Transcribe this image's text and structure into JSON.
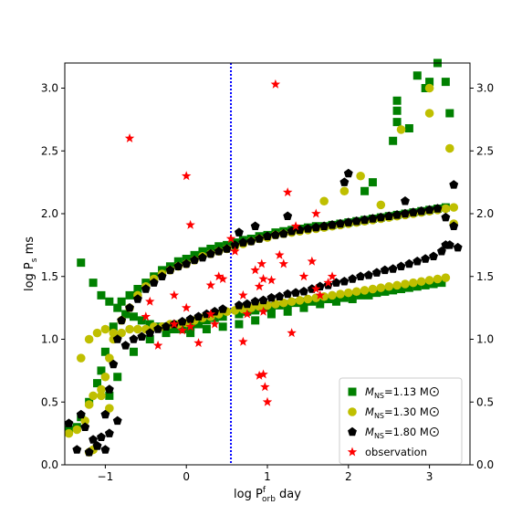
{
  "chart_data": {
    "type": "scatter",
    "xlabel": {
      "main": "log P",
      "sup": "f",
      "sub": "orb",
      "unit": "day"
    },
    "ylabel": {
      "main": "log P",
      "sub": "s",
      "unit": "ms"
    },
    "xlim": [
      -1.5,
      3.5
    ],
    "ylim": [
      0.0,
      3.2
    ],
    "x_ticks": [
      -1,
      0,
      1,
      2,
      3
    ],
    "x_tick_labels": [
      "−1",
      "0",
      "1",
      "2",
      "3"
    ],
    "y_ticks": [
      0.0,
      0.5,
      1.0,
      1.5,
      2.0,
      2.5,
      3.0
    ],
    "y_tick_labels": [
      "0.0",
      "0.5",
      "1.0",
      "1.5",
      "2.0",
      "2.5",
      "3.0"
    ],
    "mirror_ticks": "right",
    "vline": {
      "x": 0.55,
      "color": "#0000ff",
      "style": "dotted"
    },
    "legend_position": "lower-right",
    "series": [
      {
        "name": "M_NS=1.13 M⊙",
        "legend": {
          "pre": "M",
          "sub": "NS",
          "post": "=1.13 M"
        },
        "marker": "square",
        "color": "#008000",
        "x": [
          -1.45,
          -1.35,
          -1.3,
          -1.2,
          -1.1,
          -1.0,
          -0.9,
          -0.8,
          -0.7,
          -0.6,
          -0.5,
          -0.4,
          -0.3,
          -0.2,
          -0.1,
          0.0,
          0.1,
          0.2,
          0.3,
          0.4,
          0.5,
          0.6,
          0.7,
          0.8,
          0.9,
          1.0,
          1.1,
          1.2,
          1.3,
          1.4,
          1.5,
          1.6,
          1.7,
          1.8,
          1.9,
          2.0,
          2.1,
          2.2,
          2.3,
          2.4,
          2.5,
          2.6,
          2.7,
          2.8,
          2.9,
          3.0,
          3.1,
          3.2,
          -1.3,
          -1.15,
          -1.05,
          -0.95,
          -0.85,
          -0.75,
          -0.65,
          -0.55,
          -0.45,
          -0.35,
          -0.25,
          -0.15,
          -0.05,
          0.05,
          0.15,
          0.25,
          0.35,
          0.45,
          0.65,
          0.75,
          0.85,
          0.95,
          1.05,
          1.15,
          1.25,
          1.35,
          1.45,
          1.55,
          1.65,
          1.75,
          1.85,
          1.95,
          2.05,
          2.15,
          2.25,
          2.35,
          2.45,
          2.55,
          2.65,
          2.75,
          2.85,
          2.95,
          3.05,
          3.15,
          2.6,
          2.6,
          2.6,
          2.55,
          2.75,
          2.85,
          2.95,
          3.0,
          3.1,
          3.2,
          3.25,
          2.3,
          2.2,
          -1.05,
          -0.95,
          -0.85,
          -0.65,
          -0.45,
          -0.25,
          0.05,
          0.25,
          0.45,
          0.65,
          0.85,
          1.05,
          1.25,
          1.45,
          1.65,
          1.85,
          2.05,
          2.25,
          2.45
        ],
        "y": [
          0.28,
          0.3,
          0.38,
          0.5,
          0.65,
          0.9,
          1.1,
          1.3,
          1.35,
          1.4,
          1.45,
          1.5,
          1.55,
          1.58,
          1.62,
          1.64,
          1.67,
          1.7,
          1.72,
          1.74,
          1.75,
          1.77,
          1.79,
          1.8,
          1.82,
          1.83,
          1.85,
          1.86,
          1.87,
          1.88,
          1.89,
          1.9,
          1.9,
          1.91,
          1.92,
          1.93,
          1.94,
          1.95,
          1.96,
          1.97,
          1.98,
          1.99,
          2.0,
          2.01,
          2.02,
          2.03,
          2.04,
          2.05,
          1.61,
          1.45,
          1.35,
          1.3,
          1.25,
          1.2,
          1.18,
          1.15,
          1.12,
          1.1,
          1.1,
          1.08,
          1.08,
          1.1,
          1.12,
          1.15,
          1.17,
          1.18,
          1.2,
          1.22,
          1.23,
          1.25,
          1.26,
          1.27,
          1.28,
          1.29,
          1.3,
          1.3,
          1.31,
          1.32,
          1.33,
          1.33,
          1.34,
          1.35,
          1.36,
          1.37,
          1.38,
          1.39,
          1.4,
          1.41,
          1.42,
          1.43,
          1.44,
          1.45,
          2.9,
          2.82,
          2.73,
          2.58,
          2.68,
          3.1,
          3.0,
          3.05,
          3.2,
          3.05,
          2.8,
          2.25,
          2.18,
          0.75,
          0.55,
          0.7,
          0.9,
          1.0,
          1.05,
          1.05,
          1.08,
          1.1,
          1.12,
          1.15,
          1.2,
          1.22,
          1.25,
          1.28,
          1.3,
          1.32,
          1.35,
          1.38
        ]
      },
      {
        "name": "M_NS=1.30 M⊙",
        "legend": {
          "pre": "M",
          "sub": "NS",
          "post": "=1.30 M"
        },
        "marker": "circle",
        "color": "#bfbf00",
        "x": [
          -1.45,
          -1.35,
          -1.25,
          -1.2,
          -1.15,
          -1.05,
          -1.0,
          -0.95,
          -0.9,
          -0.8,
          -0.7,
          -0.6,
          -0.5,
          -0.4,
          -0.3,
          -0.2,
          -0.1,
          0.0,
          0.1,
          0.2,
          0.3,
          0.4,
          0.5,
          0.6,
          0.7,
          0.8,
          0.9,
          1.0,
          1.1,
          1.2,
          1.3,
          1.4,
          1.5,
          1.6,
          1.7,
          1.8,
          1.9,
          2.0,
          2.1,
          2.2,
          2.3,
          2.4,
          2.5,
          2.6,
          2.7,
          2.8,
          2.9,
          3.0,
          3.1,
          3.2,
          -1.3,
          -1.2,
          -1.1,
          -1.0,
          -0.9,
          -0.8,
          -0.7,
          -0.6,
          -0.5,
          -0.4,
          -0.3,
          -0.2,
          -0.1,
          0.0,
          0.1,
          0.2,
          0.3,
          0.4,
          0.5,
          0.6,
          0.7,
          0.8,
          0.9,
          1.0,
          1.1,
          1.2,
          1.3,
          1.4,
          1.5,
          1.6,
          1.7,
          1.8,
          1.9,
          2.0,
          2.1,
          2.2,
          2.3,
          2.4,
          2.5,
          2.6,
          2.7,
          2.8,
          2.9,
          3.0,
          3.1,
          3.2,
          3.0,
          3.0,
          2.65,
          2.4,
          3.25,
          3.3,
          3.3,
          1.7,
          1.95,
          2.15,
          -1.2,
          -1.15,
          -1.05,
          -0.95
        ],
        "y": [
          0.25,
          0.28,
          0.35,
          0.48,
          0.55,
          0.6,
          0.7,
          0.85,
          1.0,
          1.15,
          1.25,
          1.35,
          1.42,
          1.48,
          1.52,
          1.55,
          1.58,
          1.6,
          1.63,
          1.66,
          1.68,
          1.7,
          1.72,
          1.74,
          1.76,
          1.78,
          1.8,
          1.81,
          1.83,
          1.84,
          1.85,
          1.86,
          1.87,
          1.88,
          1.89,
          1.9,
          1.91,
          1.92,
          1.93,
          1.94,
          1.95,
          1.96,
          1.97,
          1.98,
          1.99,
          2.0,
          2.01,
          2.02,
          2.03,
          2.04,
          0.85,
          1.0,
          1.05,
          1.08,
          1.05,
          1.05,
          1.08,
          1.08,
          1.08,
          1.1,
          1.1,
          1.12,
          1.12,
          1.13,
          1.15,
          1.17,
          1.18,
          1.2,
          1.22,
          1.23,
          1.24,
          1.25,
          1.26,
          1.27,
          1.28,
          1.29,
          1.3,
          1.31,
          1.32,
          1.33,
          1.34,
          1.35,
          1.36,
          1.37,
          1.38,
          1.39,
          1.4,
          1.41,
          1.42,
          1.43,
          1.44,
          1.45,
          1.46,
          1.47,
          1.48,
          1.49,
          2.8,
          3.0,
          2.67,
          2.07,
          2.52,
          2.05,
          1.92,
          2.1,
          2.18,
          2.3,
          0.1,
          0.12,
          0.55,
          0.45
        ]
      },
      {
        "name": "M_NS=1.80 M⊙",
        "legend": {
          "pre": "M",
          "sub": "NS",
          "post": "=1.80 M"
        },
        "marker": "pentagon",
        "color": "#000000",
        "x": [
          -1.45,
          -1.3,
          -1.25,
          -1.15,
          -1.1,
          -1.05,
          -1.0,
          -0.95,
          -0.9,
          -0.85,
          -0.8,
          -0.7,
          -0.6,
          -0.5,
          -0.4,
          -0.3,
          -0.2,
          -0.1,
          0.0,
          0.1,
          0.2,
          0.3,
          0.4,
          0.5,
          0.6,
          0.7,
          0.8,
          0.9,
          1.0,
          1.1,
          1.2,
          1.3,
          1.4,
          1.5,
          1.6,
          1.7,
          1.8,
          1.9,
          2.0,
          2.1,
          2.2,
          2.3,
          2.4,
          2.5,
          2.6,
          2.7,
          2.8,
          2.9,
          3.0,
          3.1,
          3.2,
          3.3,
          -0.75,
          -0.65,
          -0.55,
          -0.45,
          -0.35,
          -0.25,
          -0.15,
          -0.05,
          0.05,
          0.15,
          0.25,
          0.35,
          0.45,
          0.65,
          0.75,
          0.85,
          0.95,
          1.05,
          1.15,
          1.25,
          1.35,
          1.45,
          1.55,
          1.65,
          1.75,
          1.85,
          1.95,
          2.05,
          2.15,
          2.25,
          2.35,
          2.45,
          2.55,
          2.65,
          2.75,
          2.85,
          2.95,
          3.05,
          3.15,
          3.25,
          2.0,
          1.95,
          2.7,
          3.3,
          3.35,
          3.2,
          0.65,
          0.85,
          1.25,
          -1.35,
          -1.2,
          -1.1,
          -1.0,
          -0.95,
          -0.85
        ],
        "y": [
          0.33,
          0.4,
          0.3,
          0.2,
          0.15,
          0.22,
          0.4,
          0.6,
          0.8,
          1.0,
          1.15,
          1.25,
          1.32,
          1.4,
          1.45,
          1.5,
          1.55,
          1.58,
          1.6,
          1.63,
          1.65,
          1.68,
          1.7,
          1.72,
          1.75,
          1.77,
          1.78,
          1.8,
          1.82,
          1.83,
          1.84,
          1.86,
          1.87,
          1.88,
          1.89,
          1.9,
          1.91,
          1.92,
          1.93,
          1.94,
          1.95,
          1.96,
          1.97,
          1.98,
          1.99,
          2.0,
          2.01,
          2.02,
          2.03,
          2.04,
          1.97,
          1.9,
          0.95,
          1.0,
          1.02,
          1.05,
          1.08,
          1.1,
          1.12,
          1.14,
          1.16,
          1.18,
          1.2,
          1.22,
          1.24,
          1.27,
          1.28,
          1.3,
          1.31,
          1.33,
          1.34,
          1.36,
          1.37,
          1.38,
          1.4,
          1.42,
          1.43,
          1.45,
          1.46,
          1.48,
          1.5,
          1.51,
          1.53,
          1.55,
          1.56,
          1.58,
          1.6,
          1.62,
          1.64,
          1.66,
          1.7,
          1.75,
          2.32,
          2.25,
          2.1,
          2.23,
          1.73,
          1.75,
          1.85,
          1.9,
          1.98,
          0.12,
          0.1,
          0.15,
          0.12,
          0.25,
          0.35
        ]
      },
      {
        "name": "observation",
        "legend": {
          "pre": "observation",
          "sub": "",
          "post": ""
        },
        "marker": "star",
        "color": "#ff0000",
        "x": [
          -0.7,
          0.0,
          0.05,
          1.1,
          1.25,
          1.3,
          -0.45,
          -0.35,
          -0.15,
          -0.05,
          0.05,
          0.15,
          0.3,
          0.35,
          0.45,
          0.55,
          0.6,
          0.7,
          0.75,
          0.85,
          0.9,
          0.95,
          1.05,
          1.15,
          1.2,
          1.35,
          1.45,
          1.55,
          1.6,
          1.65,
          1.75,
          1.8,
          0.9,
          0.95,
          0.97,
          1.0,
          0.93,
          0.7,
          0.95,
          0.4,
          0.3,
          -0.15,
          0.0,
          -0.5,
          1.6
        ],
        "y": [
          2.6,
          2.3,
          1.91,
          3.03,
          2.17,
          1.05,
          1.3,
          0.95,
          1.12,
          1.07,
          1.1,
          0.97,
          1.2,
          1.12,
          1.48,
          1.8,
          1.7,
          1.35,
          1.2,
          1.55,
          1.42,
          1.22,
          1.47,
          1.67,
          1.6,
          1.9,
          1.5,
          1.62,
          1.4,
          1.35,
          1.45,
          1.5,
          0.71,
          0.72,
          0.62,
          0.5,
          1.6,
          0.98,
          1.48,
          1.5,
          1.43,
          1.35,
          1.25,
          1.18,
          2.0
        ]
      }
    ]
  }
}
